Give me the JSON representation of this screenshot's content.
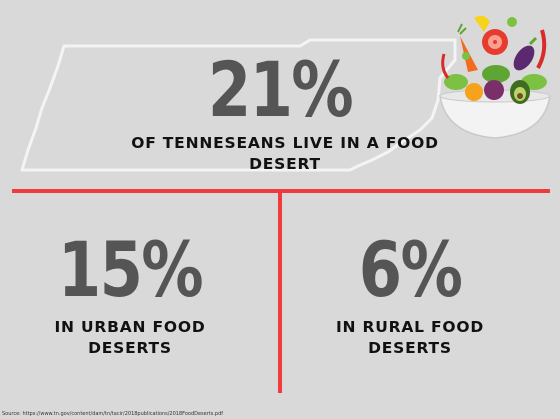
{
  "headline": {
    "value": "21%",
    "caption_line1": "OF TENNESEANS LIVE IN A FOOD",
    "caption_line2": "DESERT"
  },
  "urban": {
    "value": "15%",
    "caption_line1": "IN URBAN FOOD",
    "caption_line2": "DESERTS"
  },
  "rural": {
    "value": "6%",
    "caption_line1": "IN RURAL FOOD",
    "caption_line2": "DESERTS"
  },
  "source": "Source: https://www.tn.gov/content/dam/tn/tacir/2018publications/2018FoodDeserts.pdf",
  "icons": {
    "state_outline": "tennessee-outline-icon",
    "salad": "salad-bowl-icon"
  },
  "colors": {
    "accent": "#ef3b3b",
    "number": "#555555",
    "background": "#d9d9d9"
  }
}
